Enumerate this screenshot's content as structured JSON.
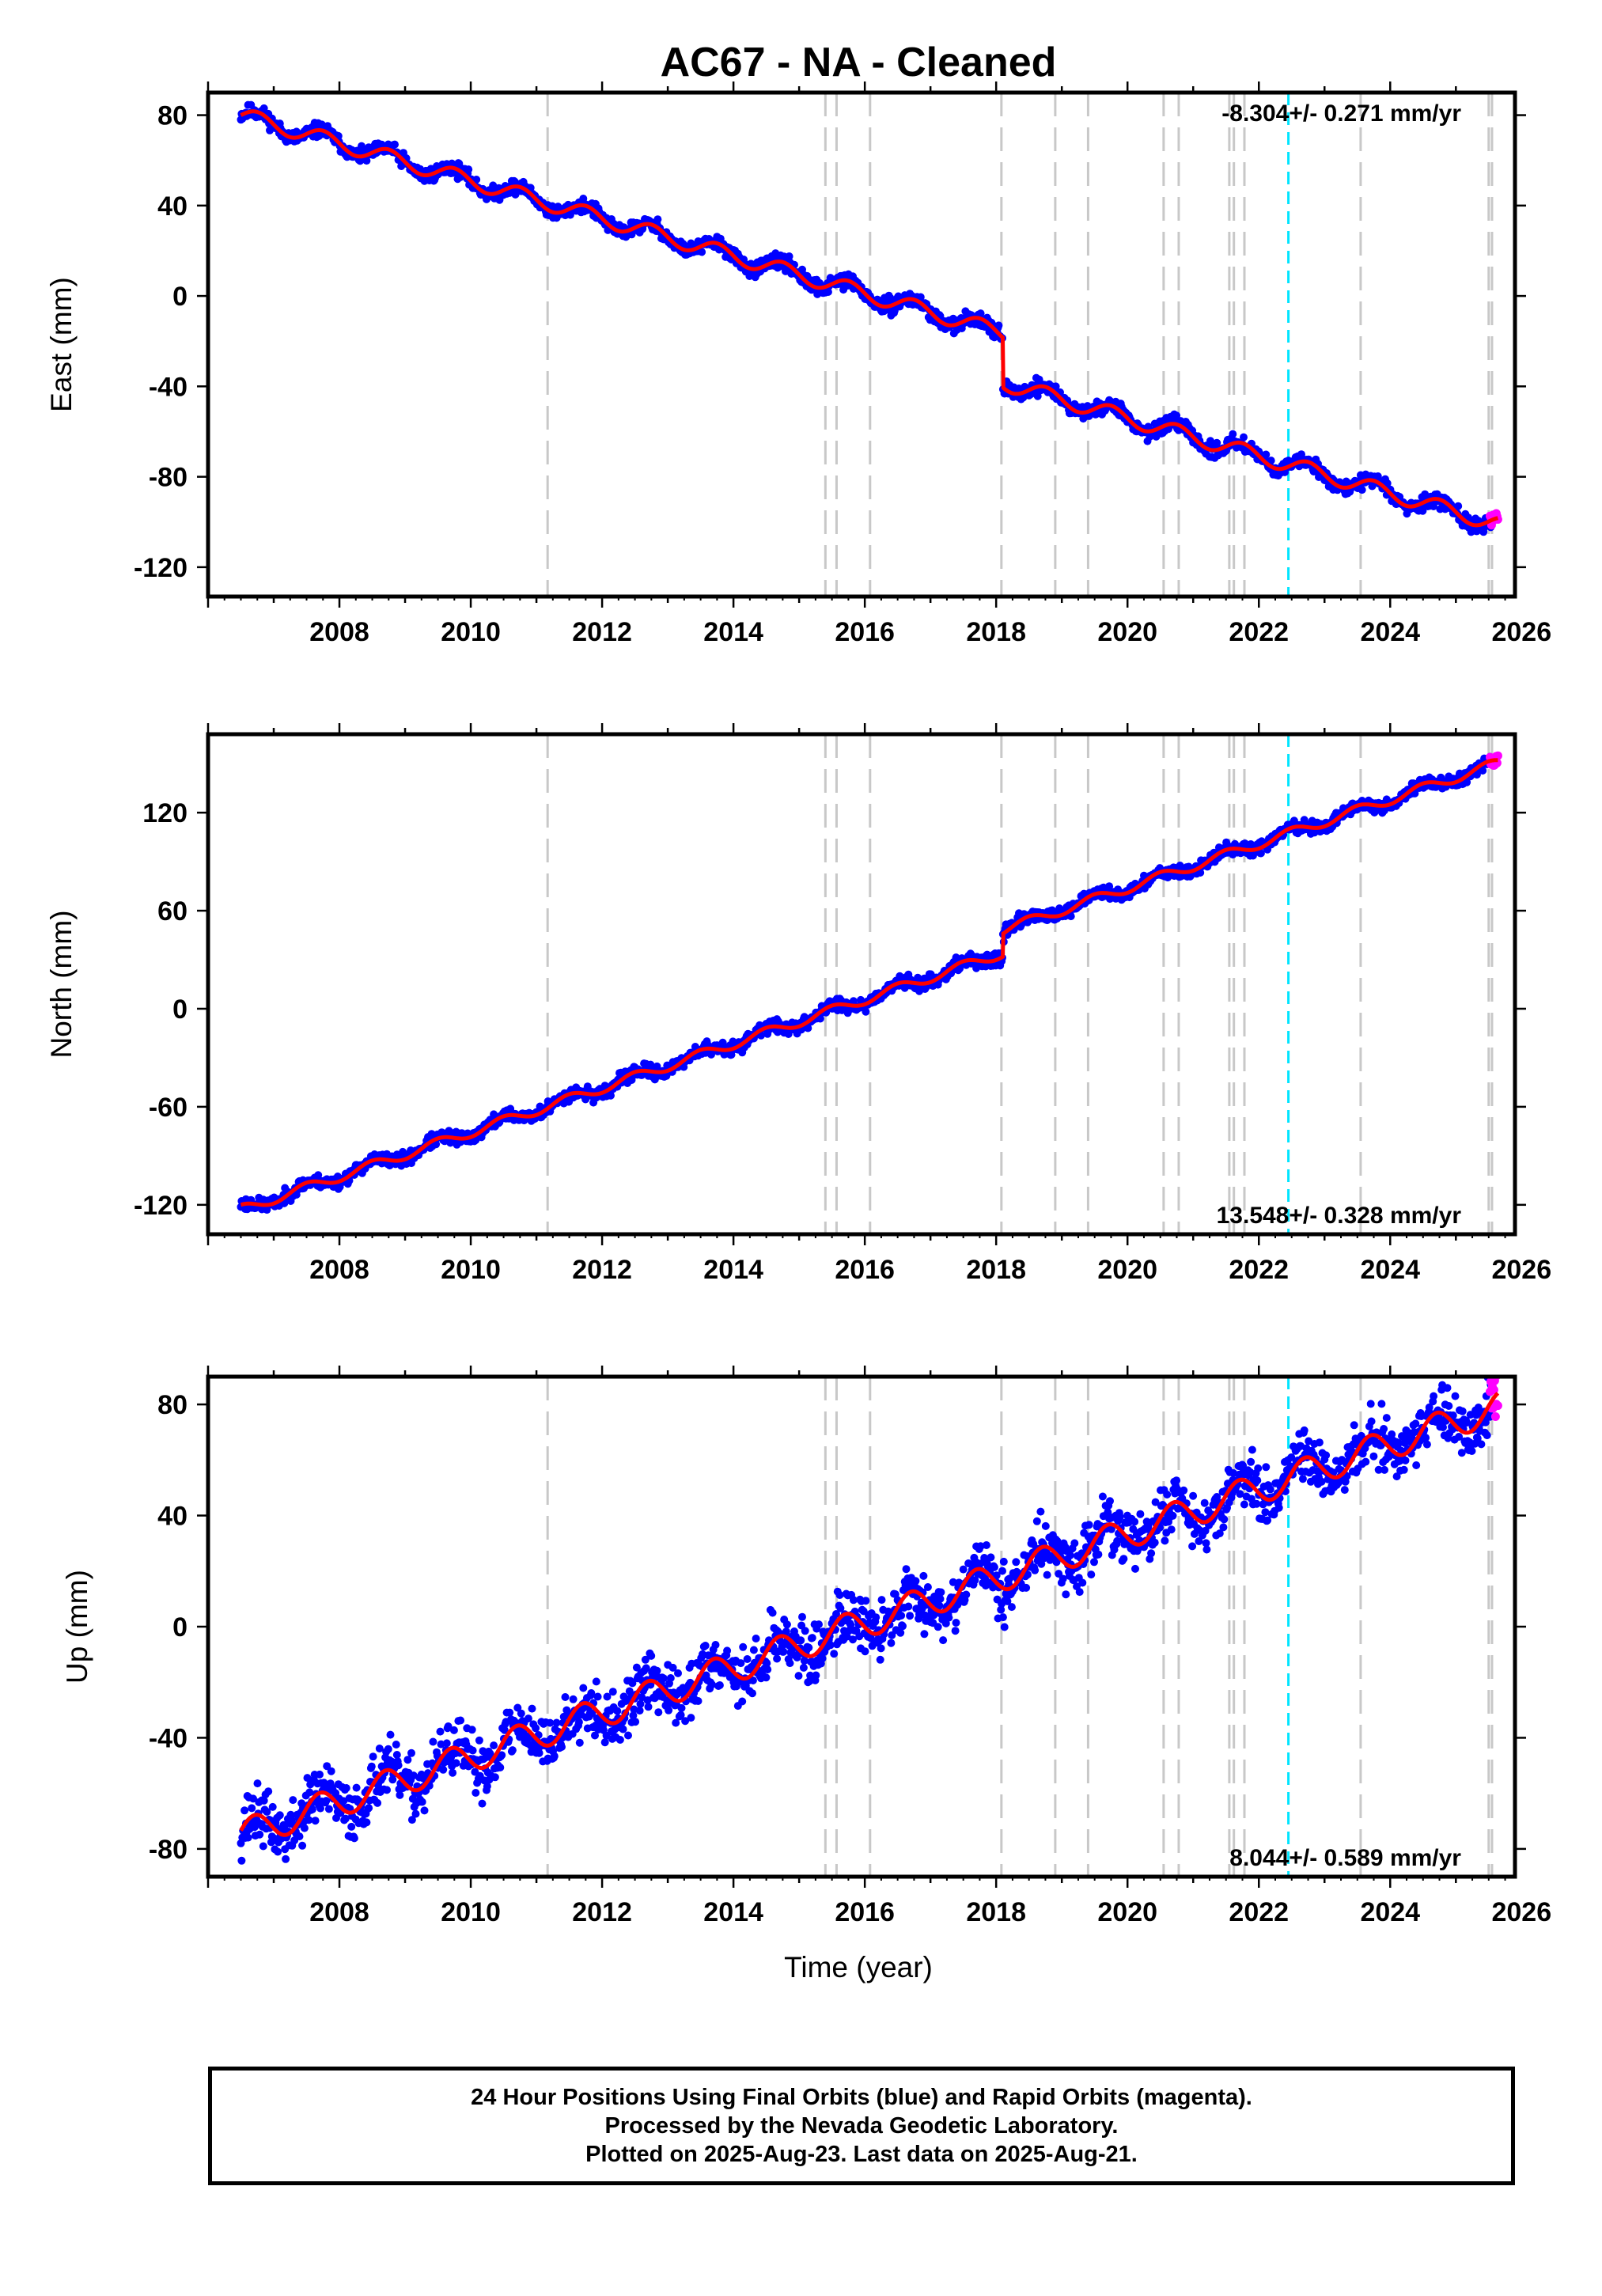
{
  "title": "AC67  - NA - Cleaned",
  "xlabel": "Time (year)",
  "footer": [
    "24 Hour Positions Using Final Orbits (blue) and Rapid Orbits (magenta).",
    "Processed by the Nevada Geodetic Laboratory.",
    "Plotted on 2025-Aug-23. Last data on 2025-Aug-21."
  ],
  "colors": {
    "final": "#0000ff",
    "rapid": "#ff00ff",
    "model": "#ff0000",
    "event": "#c8c8c8",
    "antenna": "#00e5ff"
  },
  "chart_data": [
    {
      "type": "scatter",
      "component": "East",
      "ylabel": "East (mm)",
      "rate_label": "-8.304+/- 0.271 mm/yr",
      "rate_position": "top-right",
      "xlim": [
        2006.0,
        2025.9
      ],
      "ylim": [
        -133,
        90
      ],
      "xticks": [
        2008,
        2010,
        2012,
        2014,
        2016,
        2018,
        2020,
        2022,
        2024,
        2026
      ],
      "yticks": [
        -120,
        -80,
        -40,
        0,
        40,
        80
      ],
      "start": 2006.5,
      "end": 2025.64,
      "rate_mm_yr": -8.304,
      "value_at_start": 80,
      "annual_amplitude": 3.5,
      "annual_phase": 0.0,
      "steps": [
        {
          "year": 2018.1,
          "offset": -22
        }
      ],
      "scatter_spread": 1.6,
      "seed": 11
    },
    {
      "type": "scatter",
      "component": "North",
      "ylabel": "North (mm)",
      "rate_label": "13.548+/- 0.328 mm/yr",
      "rate_position": "bottom-right",
      "xlim": [
        2006.0,
        2025.9
      ],
      "ylim": [
        -138,
        168
      ],
      "xticks": [
        2008,
        2010,
        2012,
        2014,
        2016,
        2018,
        2020,
        2022,
        2024,
        2026
      ],
      "yticks": [
        -120,
        -60,
        0,
        60,
        120
      ],
      "start": 2006.5,
      "end": 2025.64,
      "rate_mm_yr": 13.548,
      "value_at_start": -123,
      "annual_amplitude": 3.0,
      "annual_phase": 1.6,
      "steps": [
        {
          "year": 2018.1,
          "offset": 14
        }
      ],
      "scatter_spread": 2.0,
      "seed": 23
    },
    {
      "type": "scatter",
      "component": "Up",
      "ylabel": "Up (mm)",
      "rate_label": "8.044+/- 0.589 mm/yr",
      "rate_position": "bottom-right",
      "xlim": [
        2006.0,
        2025.9
      ],
      "ylim": [
        -90,
        90
      ],
      "xticks": [
        2008,
        2010,
        2012,
        2014,
        2016,
        2018,
        2020,
        2022,
        2024,
        2026
      ],
      "yticks": [
        -80,
        -40,
        0,
        40,
        80
      ],
      "start": 2006.5,
      "end": 2025.64,
      "rate_mm_yr": 8.044,
      "value_at_start": -75,
      "annual_amplitude": 5.5,
      "annual_phase": 0.3,
      "steps": [],
      "scatter_spread": 5.0,
      "seed": 37
    }
  ],
  "event_lines": [
    2011.17,
    2015.4,
    2015.57,
    2016.08,
    2018.08,
    2018.9,
    2019.4,
    2020.55,
    2020.78,
    2021.55,
    2021.62,
    2021.78,
    2023.55,
    2025.5,
    2025.55
  ],
  "antenna_change": 2022.45
}
